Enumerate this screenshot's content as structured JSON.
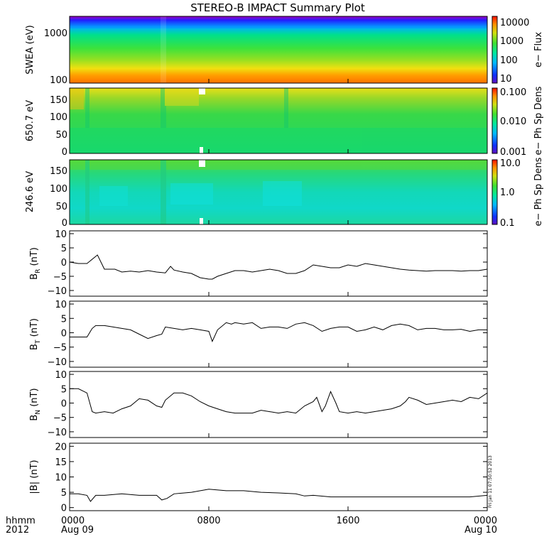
{
  "chart_data": {
    "type": "line",
    "title": "STEREO-B IMPACT Summary Plot",
    "corner_labels": [
      "hhmm",
      "2012"
    ],
    "x_tick_labels": [
      {
        "time": "0000",
        "date": "Aug 09",
        "hours": 0
      },
      {
        "time": "0800",
        "date": "",
        "hours": 8
      },
      {
        "time": "1600",
        "date": "",
        "hours": 16
      },
      {
        "time": "0000",
        "date": "Aug 10",
        "hours": 24
      }
    ],
    "xlim_hours": [
      0,
      24
    ],
    "side_note": "Fri Jan 11 07:50:52 2013",
    "spectrograms": [
      {
        "ylabel": "SWEA (eV)",
        "yscale": "log",
        "ylim": [
          90,
          1900
        ],
        "yticks": [
          "1000",
          "100"
        ],
        "colorbar_label": "e− Flux",
        "colorbar_ticks": [
          "10000",
          "1000",
          "100",
          "10"
        ]
      },
      {
        "ylabel": "650.7 eV",
        "ylim": [
          0,
          180
        ],
        "yticks": [
          "150",
          "100",
          "50",
          "0"
        ],
        "colorbar_label": "e− Ph Sp Dens",
        "colorbar_ticks": [
          "0.100",
          "0.010",
          "0.001"
        ]
      },
      {
        "ylabel": "246.6 eV",
        "ylim": [
          0,
          180
        ],
        "yticks": [
          "150",
          "100",
          "50",
          "0"
        ],
        "colorbar_label": "e− Ph Sp Dens",
        "colorbar_ticks": [
          "10.0",
          "1.0",
          "0.1"
        ]
      }
    ],
    "series": [
      {
        "name": "B",
        "subscript": "R",
        "unit": "(nT)",
        "ylim": [
          -12,
          11
        ],
        "yticks": [
          "10",
          "5",
          "0",
          "−5",
          "−10"
        ],
        "x": [
          0,
          0.5,
          1.0,
          1.6,
          1.8,
          2.0,
          2.2,
          2.6,
          3.0,
          3.5,
          4.0,
          4.5,
          5.0,
          5.5,
          5.8,
          6.0,
          6.5,
          7.0,
          7.5,
          8.0,
          8.2,
          8.5,
          9.0,
          9.5,
          10.0,
          10.5,
          11.0,
          11.5,
          12.0,
          12.5,
          13.0,
          13.5,
          14.0,
          14.5,
          15.0,
          15.5,
          16.0,
          16.5,
          17.0,
          17.5,
          18.0,
          18.5,
          19.0,
          19.5,
          20.0,
          20.5,
          21.0,
          21.5,
          22.0,
          22.5,
          23.0,
          23.5,
          24.0
        ],
        "values": [
          0,
          -0.5,
          -0.5,
          2.5,
          0,
          -2.5,
          -2.5,
          -2.5,
          -3.5,
          -3.2,
          -3.5,
          -3.0,
          -3.5,
          -3.8,
          -1.5,
          -2.8,
          -3.5,
          -4.0,
          -5.5,
          -6.0,
          -6.0,
          -5.0,
          -4.0,
          -3.0,
          -3.0,
          -3.5,
          -3.0,
          -2.5,
          -3.0,
          -4.0,
          -4.0,
          -3.0,
          -1.0,
          -1.5,
          -2.0,
          -2.0,
          -1.0,
          -1.5,
          -0.5,
          -1.0,
          -1.5,
          -2.0,
          -2.5,
          -2.8,
          -3.0,
          -3.2,
          -3.0,
          -3.0,
          -3.0,
          -3.2,
          -3.0,
          -3.0,
          -2.5
        ]
      },
      {
        "name": "B",
        "subscript": "T",
        "unit": "(nT)",
        "ylim": [
          -12,
          11
        ],
        "yticks": [
          "10",
          "5",
          "0",
          "−5",
          "−10"
        ],
        "x": [
          0,
          0.5,
          1.0,
          1.3,
          1.5,
          2.0,
          2.5,
          3.0,
          3.5,
          4.0,
          4.5,
          5.0,
          5.3,
          5.5,
          6.0,
          6.5,
          7.0,
          7.5,
          8.0,
          8.2,
          8.5,
          9.0,
          9.3,
          9.5,
          10.0,
          10.5,
          11.0,
          11.5,
          12.0,
          12.5,
          13.0,
          13.5,
          14.0,
          14.5,
          15.0,
          15.5,
          16.0,
          16.5,
          17.0,
          17.5,
          18.0,
          18.5,
          19.0,
          19.5,
          20.0,
          20.5,
          21.0,
          21.5,
          22.0,
          22.5,
          23.0,
          23.5,
          24.0
        ],
        "values": [
          -1.5,
          -1.5,
          -1.5,
          1.5,
          2.5,
          2.5,
          2.0,
          1.5,
          1.0,
          -0.5,
          -2.0,
          -1.0,
          -0.5,
          2.0,
          1.5,
          1.0,
          1.5,
          1.0,
          0.5,
          -3.0,
          1.0,
          3.5,
          3.0,
          3.5,
          3.0,
          3.5,
          1.5,
          2.0,
          2.0,
          1.5,
          3.0,
          3.5,
          2.5,
          0.5,
          1.5,
          2.0,
          2.0,
          0.5,
          1.0,
          2.0,
          1.0,
          2.5,
          3.0,
          2.5,
          1.0,
          1.5,
          1.5,
          1.0,
          1.0,
          1.2,
          0.5,
          1.0,
          1.0
        ]
      },
      {
        "name": "B",
        "subscript": "N",
        "unit": "(nT)",
        "ylim": [
          -12,
          11
        ],
        "yticks": [
          "10",
          "5",
          "0",
          "−5",
          "−10"
        ],
        "x": [
          0,
          0.5,
          1.0,
          1.3,
          1.5,
          2.0,
          2.5,
          3.0,
          3.5,
          4.0,
          4.5,
          5.0,
          5.3,
          5.5,
          6.0,
          6.5,
          7.0,
          7.5,
          8.0,
          8.5,
          9.0,
          9.5,
          10.0,
          10.5,
          11.0,
          11.5,
          12.0,
          12.5,
          13.0,
          13.5,
          14.0,
          14.2,
          14.5,
          14.7,
          15.0,
          15.3,
          15.5,
          16.0,
          16.5,
          17.0,
          17.5,
          18.0,
          18.5,
          19.0,
          19.3,
          19.5,
          20.0,
          20.5,
          21.0,
          21.5,
          22.0,
          22.5,
          23.0,
          23.5,
          24.0
        ],
        "values": [
          5.0,
          5.0,
          3.5,
          -3.0,
          -3.5,
          -3.0,
          -3.5,
          -2.0,
          -1.0,
          1.5,
          1.0,
          -1.0,
          -1.5,
          1.0,
          3.5,
          3.5,
          2.5,
          0.5,
          -1.0,
          -2.0,
          -3.0,
          -3.5,
          -3.5,
          -3.5,
          -2.5,
          -3.0,
          -3.5,
          -3.0,
          -3.5,
          -1.0,
          0.5,
          2.0,
          -3.0,
          -1.0,
          4.0,
          0,
          -3.0,
          -3.5,
          -3.0,
          -3.5,
          -3.0,
          -2.5,
          -2.0,
          -1.0,
          0.5,
          2.0,
          1.0,
          -0.5,
          0,
          0.5,
          1.0,
          0.5,
          2.0,
          1.5,
          3.5
        ]
      },
      {
        "name": "|B|",
        "subscript": "",
        "unit": "(nT)",
        "ylim": [
          -1,
          21
        ],
        "yticks": [
          "20",
          "15",
          "10",
          "5",
          "0"
        ],
        "x": [
          0,
          0.5,
          1.0,
          1.2,
          1.5,
          2.0,
          3.0,
          4.0,
          5.0,
          5.3,
          5.6,
          6.0,
          7.0,
          8.0,
          9.0,
          10.0,
          11.0,
          12.0,
          13.0,
          13.5,
          14.0,
          15.0,
          16.0,
          17.0,
          18.0,
          19.0,
          20.0,
          21.0,
          22.0,
          23.0,
          24.0
        ],
        "values": [
          4.5,
          4.5,
          4.0,
          2.0,
          4.0,
          4.0,
          4.5,
          4.0,
          4.0,
          2.5,
          3.0,
          4.5,
          5.0,
          6.0,
          5.5,
          5.5,
          5.0,
          4.8,
          4.5,
          3.8,
          4.0,
          3.5,
          3.5,
          3.5,
          3.5,
          3.5,
          3.5,
          3.5,
          3.5,
          3.5,
          4.0
        ]
      }
    ]
  }
}
